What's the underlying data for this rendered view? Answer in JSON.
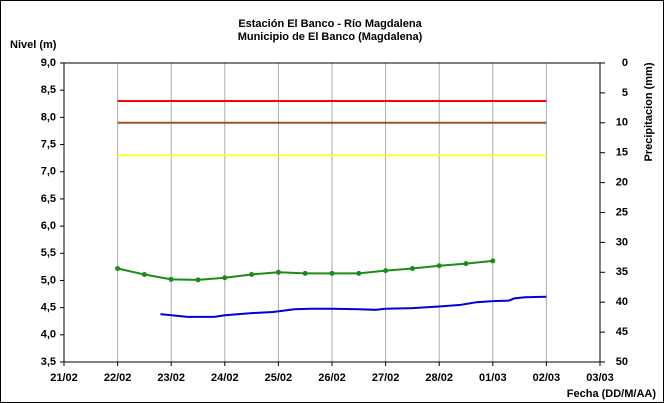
{
  "chart_data": {
    "type": "line",
    "title": "Estación El Banco - Río Magdalena",
    "subtitle": "Municipio de El Banco (Magdalena)",
    "y_label": "Nivel (m)",
    "y2_label": "Precipitacion (mm)",
    "x_label": "Fecha (DD/M/AA)",
    "xlim": [
      0,
      10
    ],
    "xticks": [
      {
        "value": 0,
        "label": "21/02"
      },
      {
        "value": 1,
        "label": "22/02"
      },
      {
        "value": 2,
        "label": "23/02"
      },
      {
        "value": 3,
        "label": "24/02"
      },
      {
        "value": 4,
        "label": "25/02"
      },
      {
        "value": 5,
        "label": "26/02"
      },
      {
        "value": 6,
        "label": "27/02"
      },
      {
        "value": 7,
        "label": "28/02"
      },
      {
        "value": 8,
        "label": "01/03"
      },
      {
        "value": 9,
        "label": "02/03"
      },
      {
        "value": 10,
        "label": "03/03"
      }
    ],
    "ylim": [
      3.5,
      9.0
    ],
    "yticks": [
      {
        "value": 3.5,
        "label": "3,5"
      },
      {
        "value": 4.0,
        "label": "4,0"
      },
      {
        "value": 4.5,
        "label": "4,5"
      },
      {
        "value": 5.0,
        "label": "5,0"
      },
      {
        "value": 5.5,
        "label": "5,5"
      },
      {
        "value": 6.0,
        "label": "6,0"
      },
      {
        "value": 6.5,
        "label": "6,5"
      },
      {
        "value": 7.0,
        "label": "7,0"
      },
      {
        "value": 7.5,
        "label": "7,5"
      },
      {
        "value": 8.0,
        "label": "8,0"
      },
      {
        "value": 8.5,
        "label": "8,5"
      },
      {
        "value": 9.0,
        "label": "9,0"
      }
    ],
    "y2lim": [
      50,
      0
    ],
    "y2ticks": [
      0,
      5,
      10,
      15,
      20,
      25,
      30,
      35,
      40,
      45,
      50
    ],
    "grid": "x",
    "series": [
      {
        "color": "#ff0000",
        "x": [
          1,
          9
        ],
        "values": [
          8.3,
          8.3
        ],
        "markers": false
      },
      {
        "color": "#a0522d",
        "x": [
          1,
          9
        ],
        "values": [
          7.9,
          7.9
        ],
        "markers": false
      },
      {
        "color": "#ffff33",
        "x": [
          1,
          9
        ],
        "values": [
          7.3,
          7.3
        ],
        "markers": false
      },
      {
        "color": "#1a8c1a",
        "x": [
          1.0,
          1.5,
          2.0,
          2.5,
          3.0,
          3.5,
          4.0,
          4.5,
          5.0,
          5.5,
          6.0,
          6.5,
          7.0,
          7.5,
          8.0
        ],
        "values": [
          5.22,
          5.11,
          5.02,
          5.01,
          5.05,
          5.11,
          5.15,
          5.13,
          5.13,
          5.13,
          5.18,
          5.22,
          5.27,
          5.31,
          5.36
        ],
        "markers": true
      },
      {
        "color": "#0000dd",
        "x": [
          1.8,
          2.1,
          2.3,
          2.8,
          3.0,
          3.5,
          3.9,
          4.3,
          4.6,
          5.0,
          5.5,
          5.8,
          6.0,
          6.5,
          7.0,
          7.4,
          7.7,
          8.0,
          8.3,
          8.4,
          8.6,
          9.0
        ],
        "values": [
          4.38,
          4.35,
          4.33,
          4.33,
          4.36,
          4.4,
          4.42,
          4.47,
          4.48,
          4.48,
          4.47,
          4.46,
          4.48,
          4.49,
          4.52,
          4.55,
          4.6,
          4.62,
          4.63,
          4.67,
          4.69,
          4.7
        ],
        "markers": false
      }
    ]
  }
}
